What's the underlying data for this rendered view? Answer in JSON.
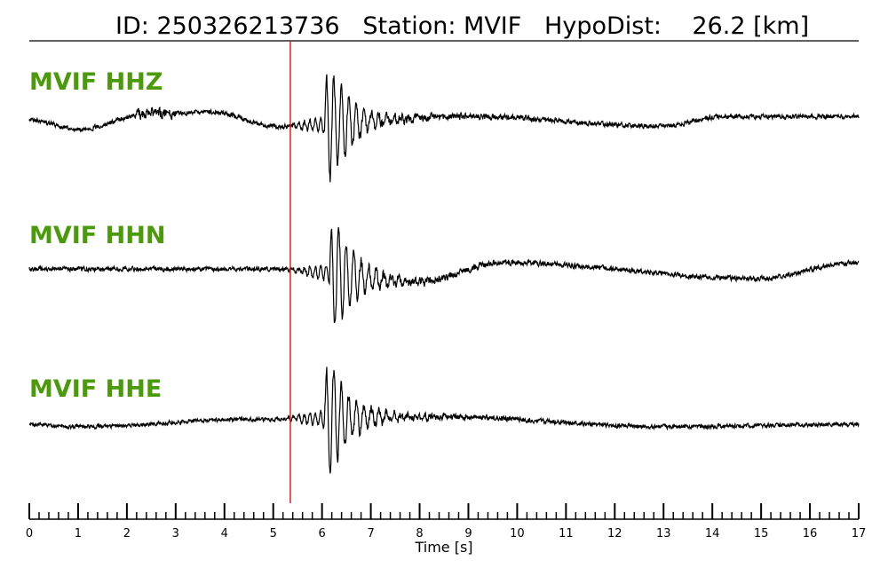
{
  "header": {
    "id_label": "ID:",
    "id_value": "250326213736",
    "station_label": "Station:",
    "station_value": "MVIF",
    "hypodist_label": "HypoDist:",
    "hypodist_value": "26.2",
    "hypodist_unit": "[km]"
  },
  "colors": {
    "trace": "#000000",
    "label": "#4a9a0a",
    "pick_line": "#e0201e",
    "axis": "#000000"
  },
  "chart_data": {
    "type": "line",
    "title": "ID: 250326213736   Station: MVIF   HypoDist:    26.2 [km]",
    "xlabel": "Time [s]",
    "xlim": [
      0,
      17
    ],
    "x_ticks": [
      0,
      1,
      2,
      3,
      4,
      5,
      6,
      7,
      8,
      9,
      10,
      11,
      12,
      13,
      14,
      15,
      16,
      17
    ],
    "minor_tick_step": 0.2,
    "pick_time_s": 5.35,
    "grid": false,
    "series": [
      {
        "name": "MVIF HHZ",
        "arrival_s": 6.1,
        "description_points": [
          {
            "t": 0.0,
            "v": 0.0
          },
          {
            "t": 1.0,
            "v": -0.15
          },
          {
            "t": 2.5,
            "v": 0.1
          },
          {
            "t": 3.8,
            "v": 0.12
          },
          {
            "t": 5.0,
            "v": -0.1
          },
          {
            "t": 6.1,
            "v": 1.0
          },
          {
            "t": 9.0,
            "v": 0.05
          },
          {
            "t": 13.0,
            "v": -0.1
          },
          {
            "t": 14.2,
            "v": 0.05
          },
          {
            "t": 17.0,
            "v": 0.05
          }
        ]
      },
      {
        "name": "MVIF HHN",
        "arrival_s": 6.2,
        "description_points": [
          {
            "t": 0.0,
            "v": 0.0
          },
          {
            "t": 4.8,
            "v": 0.0
          },
          {
            "t": 6.2,
            "v": 1.0
          },
          {
            "t": 8.0,
            "v": -0.2
          },
          {
            "t": 9.7,
            "v": 0.1
          },
          {
            "t": 14.9,
            "v": -0.15
          },
          {
            "t": 17.0,
            "v": 0.1
          }
        ]
      },
      {
        "name": "MVIF HHE",
        "arrival_s": 6.1,
        "description_points": [
          {
            "t": 0.0,
            "v": 0.0
          },
          {
            "t": 1.0,
            "v": -0.05
          },
          {
            "t": 4.5,
            "v": 0.1
          },
          {
            "t": 6.1,
            "v": 1.0
          },
          {
            "t": 8.4,
            "v": 0.15
          },
          {
            "t": 13.0,
            "v": -0.05
          },
          {
            "t": 17.0,
            "v": 0.0
          }
        ]
      }
    ]
  }
}
